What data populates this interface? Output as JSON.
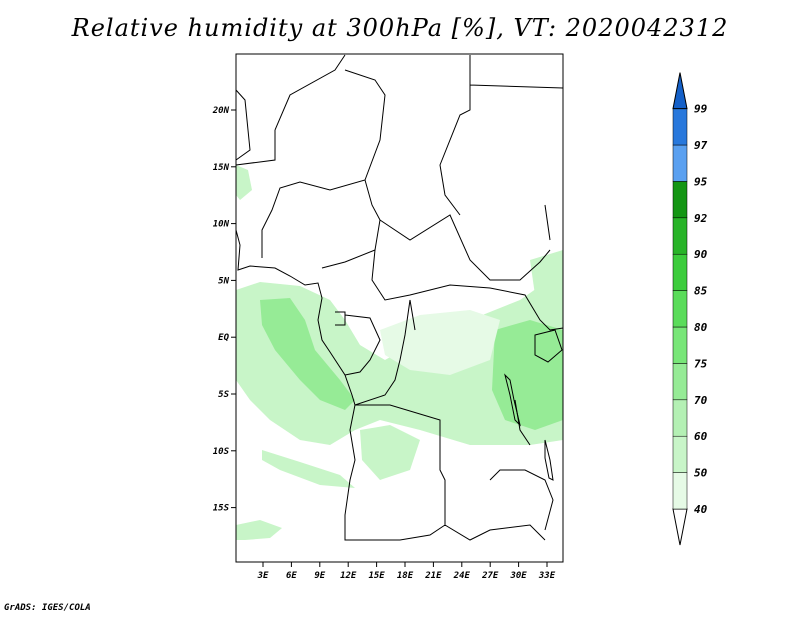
{
  "title": "Relative humidity at 300hPa [%], VT: 2020042312",
  "credit": "GrADS: IGES/COLA",
  "map": {
    "lat_labels": [
      "20N",
      "15N",
      "10N",
      "5N",
      "EQ",
      "5S",
      "10S",
      "15S"
    ],
    "lon_labels": [
      "3E",
      "6E",
      "9E",
      "12E",
      "15E",
      "18E",
      "21E",
      "24E",
      "27E",
      "30E",
      "33E"
    ]
  },
  "legend": {
    "labels": [
      "40",
      "50",
      "60",
      "70",
      "75",
      "80",
      "85",
      "90",
      "92",
      "95",
      "97",
      "99"
    ],
    "colors": [
      "#ffffff",
      "#e6fae6",
      "#c8f5c8",
      "#b4f0b4",
      "#96eb96",
      "#78e678",
      "#5adc5a",
      "#3ccc3c",
      "#28b428",
      "#149614",
      "#5aa0f0",
      "#2878dc",
      "#1460c8"
    ]
  }
}
